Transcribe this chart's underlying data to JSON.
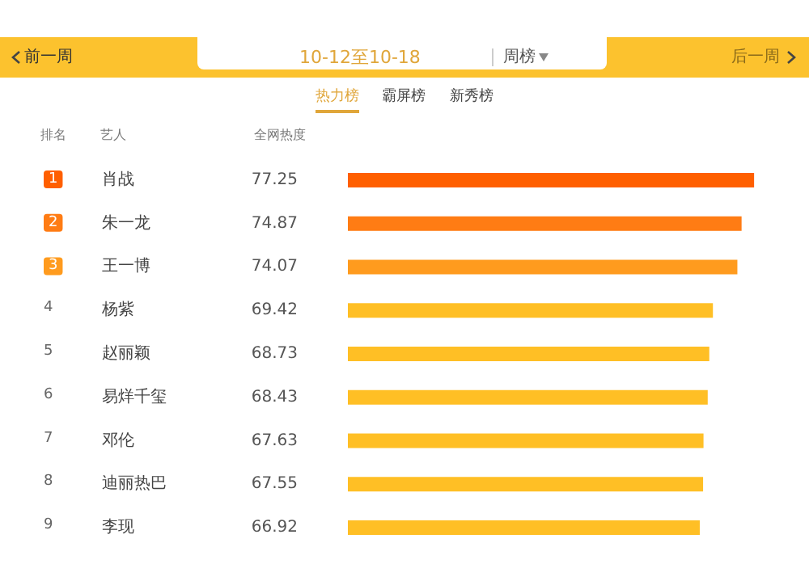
{
  "chart_data": {
    "type": "bar",
    "orientation": "horizontal",
    "title": "10-12至10-18",
    "subtitle": "周榜",
    "xlabel": "全网热度",
    "ylabel": "艺人",
    "annotations": [
      "前一周",
      "后一周",
      "热力榜",
      "霸屏榜",
      "新秀榜",
      "排名",
      "1",
      "2",
      "3",
      "4",
      "5",
      "6",
      "7",
      "8",
      "9"
    ],
    "categories": [
      "肖战",
      "朱一龙",
      "王一博",
      "杨紫",
      "赵丽颖",
      "易烊千玺",
      "邓伦",
      "迪丽热巴",
      "李现"
    ],
    "values": [
      77.25,
      74.87,
      74.07,
      69.42,
      68.73,
      68.43,
      67.63,
      67.55,
      66.92
    ],
    "colors": [
      "#ff5f00",
      "#ff7c14",
      "#ff9b1e",
      "#ffbf25",
      "#ffbf25",
      "#ffbf25",
      "#ffbf25",
      "#ffbf25",
      "#ffbf25"
    ],
    "data_labels": true,
    "tick_labels": false
  }
}
